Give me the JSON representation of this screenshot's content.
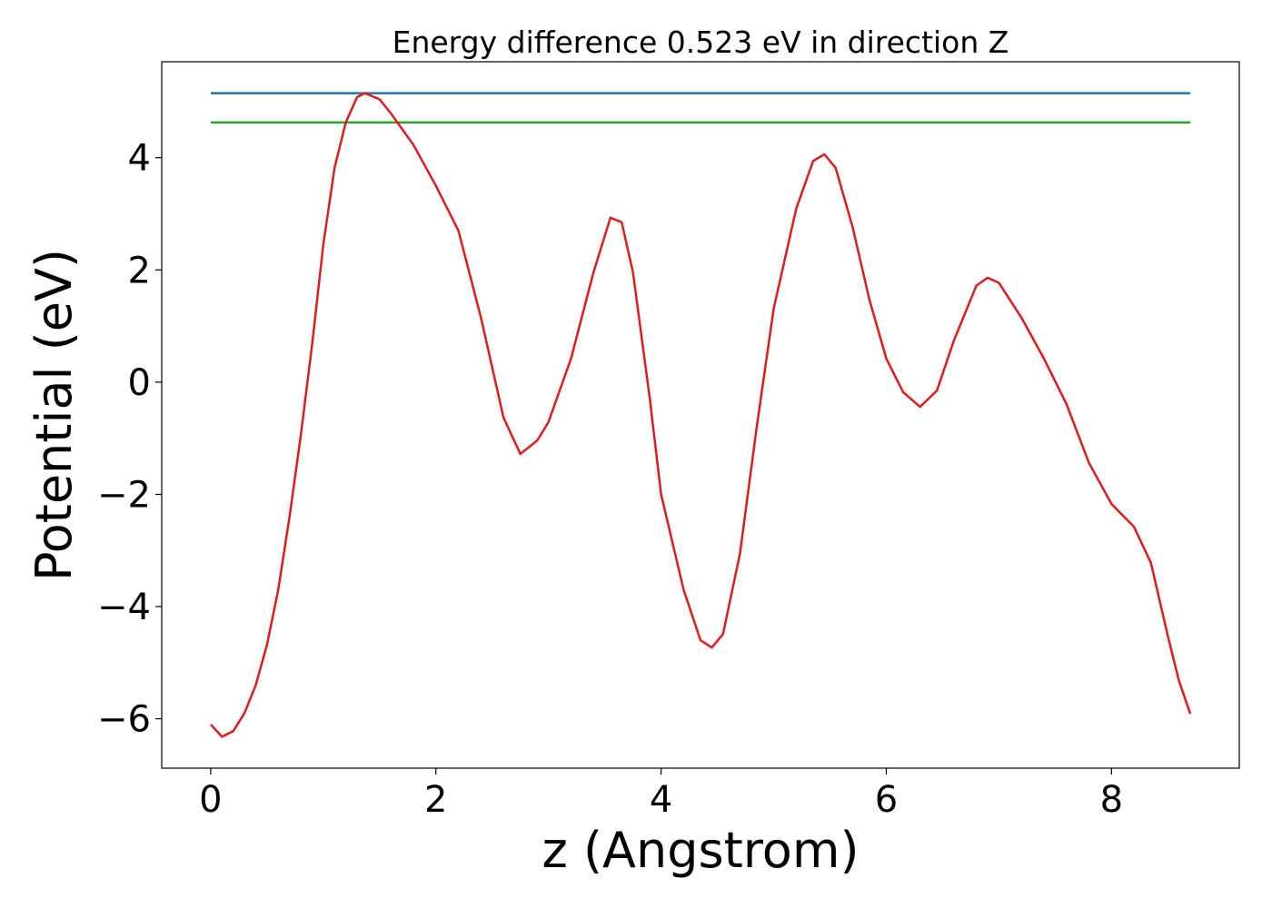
{
  "chart_data": {
    "type": "line",
    "title": "Energy difference 0.523 eV in direction Z",
    "x_label": "z (Angstrom)",
    "y_label": "Potential (eV)",
    "xlim": [
      -0.435,
      9.135
    ],
    "ylim": [
      -6.88,
      5.71
    ],
    "xticks": [
      0,
      2,
      4,
      6,
      8
    ],
    "yticks": [
      {
        "value": -6,
        "label": "−6"
      },
      {
        "value": -4,
        "label": "−4"
      },
      {
        "value": -2,
        "label": "−2"
      },
      0,
      2,
      4
    ],
    "series": [
      {
        "color": "#1f77b4",
        "x": [
          0,
          8.7
        ],
        "values": [
          5.15,
          5.15
        ]
      },
      {
        "color": "#2ca02c",
        "x": [
          0,
          8.7
        ],
        "values": [
          4.627,
          4.627
        ]
      },
      {
        "color": "#e31a1c",
        "x": [
          0,
          0.1,
          0.2,
          0.3,
          0.4,
          0.5,
          0.6,
          0.7,
          0.8,
          0.9,
          1.0,
          1.1,
          1.2,
          1.3,
          1.37,
          1.5,
          1.6,
          1.8,
          2.0,
          2.2,
          2.4,
          2.6,
          2.75,
          2.9,
          3.0,
          3.2,
          3.4,
          3.55,
          3.65,
          3.75,
          3.9,
          4.0,
          4.2,
          4.35,
          4.45,
          4.55,
          4.7,
          4.85,
          5.0,
          5.2,
          5.35,
          5.45,
          5.55,
          5.7,
          5.85,
          6.0,
          6.15,
          6.3,
          6.45,
          6.6,
          6.8,
          6.9,
          7.0,
          7.2,
          7.4,
          7.6,
          7.8,
          8.0,
          8.2,
          8.35,
          8.5,
          8.6,
          8.7
        ],
        "values": [
          -6.1,
          -6.32,
          -6.22,
          -5.9,
          -5.4,
          -4.68,
          -3.7,
          -2.4,
          -0.95,
          0.66,
          2.45,
          3.82,
          4.63,
          5.08,
          5.15,
          5.04,
          4.79,
          4.23,
          3.5,
          2.7,
          1.15,
          -0.63,
          -1.28,
          -1.04,
          -0.71,
          0.42,
          1.96,
          2.93,
          2.85,
          1.96,
          -0.3,
          -2.0,
          -3.7,
          -4.6,
          -4.73,
          -4.49,
          -3.06,
          -0.79,
          1.31,
          3.09,
          3.94,
          4.06,
          3.82,
          2.77,
          1.47,
          0.42,
          -0.18,
          -0.44,
          -0.15,
          0.74,
          1.72,
          1.86,
          1.77,
          1.15,
          0.42,
          -0.39,
          -1.44,
          -2.17,
          -2.58,
          -3.22,
          -4.52,
          -5.33,
          -5.91
        ]
      }
    ]
  }
}
